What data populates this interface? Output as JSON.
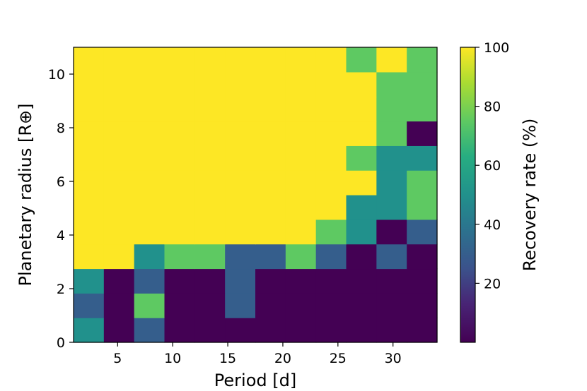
{
  "chart_data": {
    "type": "heatmap",
    "title": "",
    "xlabel": "Period [d]",
    "ylabel": "Planetary radius [R⊕]",
    "colorbar_label": "Recovery rate (%)",
    "colormap": "viridis",
    "xlim": [
      1,
      34
    ],
    "ylim": [
      0,
      11
    ],
    "clim": [
      0,
      100
    ],
    "x_ticks": [
      5,
      10,
      15,
      20,
      25,
      30
    ],
    "y_ticks": [
      0,
      2,
      4,
      6,
      8,
      10
    ],
    "colorbar_ticks": [
      20,
      40,
      60,
      80,
      100
    ],
    "x_edges": [
      1,
      3.75,
      6.5,
      9.25,
      12,
      14.75,
      17.5,
      20.25,
      23,
      25.75,
      28.5,
      31.25,
      34
    ],
    "y_edges": [
      0,
      0.917,
      1.833,
      2.75,
      3.667,
      4.583,
      5.5,
      6.417,
      7.333,
      8.25,
      9.167,
      10.083,
      11
    ],
    "values": [
      [
        50,
        0,
        30,
        0,
        0,
        0,
        0,
        0,
        0,
        0,
        0,
        0
      ],
      [
        30,
        0,
        75,
        0,
        0,
        30,
        0,
        0,
        0,
        0,
        0,
        0
      ],
      [
        50,
        0,
        30,
        0,
        0,
        30,
        0,
        0,
        0,
        0,
        0,
        0
      ],
      [
        100,
        100,
        50,
        75,
        75,
        30,
        30,
        75,
        30,
        0,
        30,
        0
      ],
      [
        100,
        100,
        100,
        100,
        100,
        100,
        100,
        100,
        75,
        50,
        0,
        30
      ],
      [
        100,
        100,
        100,
        100,
        100,
        100,
        100,
        100,
        100,
        50,
        50,
        75
      ],
      [
        100,
        100,
        100,
        100,
        100,
        100,
        100,
        100,
        100,
        100,
        50,
        75
      ],
      [
        100,
        100,
        100,
        100,
        100,
        100,
        100,
        100,
        100,
        75,
        50,
        50
      ],
      [
        100,
        100,
        100,
        100,
        100,
        100,
        100,
        100,
        100,
        100,
        75,
        0
      ],
      [
        100,
        100,
        100,
        100,
        100,
        100,
        100,
        100,
        100,
        100,
        75,
        75
      ],
      [
        100,
        100,
        100,
        100,
        100,
        100,
        100,
        100,
        100,
        100,
        75,
        75
      ],
      [
        100,
        100,
        100,
        100,
        100,
        100,
        100,
        100,
        100,
        75,
        100,
        75
      ]
    ],
    "grid": false
  }
}
